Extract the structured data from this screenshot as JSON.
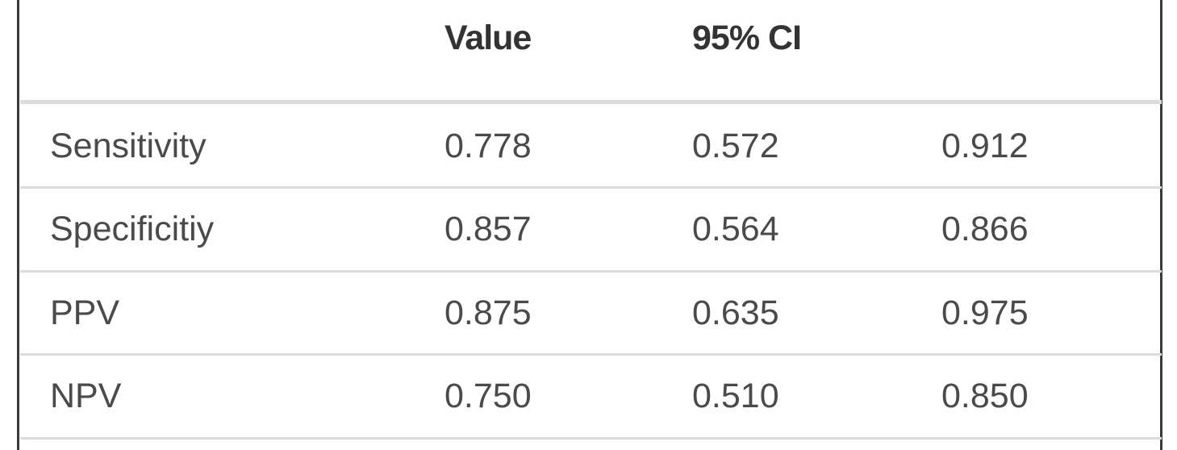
{
  "table": {
    "header": [
      "Value",
      "95% CI"
    ],
    "rows": [
      [
        "Sensitivity",
        "0.778",
        "0.572",
        "0.912"
      ],
      [
        "Specificitiy",
        "0.857",
        "0.564",
        "0.866"
      ],
      [
        "PPV",
        "0.875",
        "0.635",
        "0.975"
      ],
      [
        "NPV",
        "0.750",
        "0.510",
        "0.850"
      ]
    ]
  }
}
